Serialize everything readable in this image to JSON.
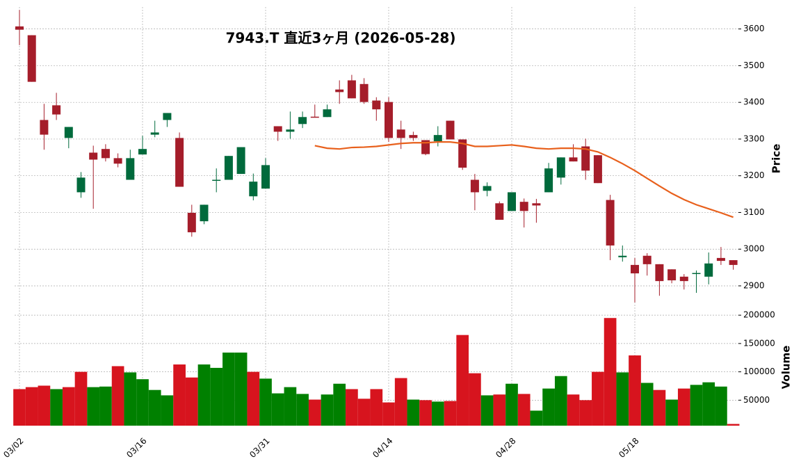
{
  "chart_data": [
    {
      "type": "candlestick",
      "title": "7943.T  直近3ヶ月  (2026-05-28)",
      "ylabel": "Price",
      "open": [
        3607,
        3583,
        3352,
        3392,
        3303,
        3155,
        3263,
        3273,
        3248,
        3189,
        3258,
        3312,
        3352,
        3303,
        3099,
        3076,
        3187,
        3189,
        3205,
        3144,
        3165,
        3335,
        3320,
        3341,
        3361,
        3360,
        3435,
        3460,
        3450,
        3405,
        3401,
        3326,
        3311,
        3297,
        3294,
        3350,
        3299,
        3189,
        3159,
        3125,
        3104,
        3129,
        3125,
        3155,
        3195,
        3250,
        3280,
        3256,
        3134,
        2978,
        2957,
        2982,
        2959,
        2945,
        2925,
        2933,
        2925,
        2976,
        2970
      ],
      "high": [
        3652,
        3583,
        3396,
        3426,
        3333,
        3210,
        3282,
        3286,
        3261,
        3271,
        3309,
        3350,
        3371,
        3318,
        3121,
        3121,
        3220,
        3254,
        3278,
        3206,
        3248,
        3335,
        3375,
        3375,
        3394,
        3394,
        3460,
        3475,
        3466,
        3414,
        3414,
        3350,
        3320,
        3297,
        3335,
        3350,
        3299,
        3205,
        3182,
        3130,
        3155,
        3138,
        3137,
        3235,
        3250,
        3286,
        3301,
        3256,
        3148,
        3010,
        2976,
        2989,
        2959,
        2945,
        2932,
        2942,
        2991,
        3006,
        2970
      ],
      "low": [
        3556,
        3456,
        3271,
        3352,
        3275,
        3140,
        3110,
        3239,
        3223,
        3189,
        3258,
        3305,
        3333,
        3170,
        3034,
        3068,
        3155,
        3189,
        3205,
        3133,
        3165,
        3295,
        3301,
        3330,
        3359,
        3360,
        3396,
        3411,
        3396,
        3350,
        3292,
        3273,
        3295,
        3256,
        3280,
        3299,
        3216,
        3106,
        3144,
        3080,
        3104,
        3059,
        3072,
        3155,
        3176,
        3239,
        3189,
        3180,
        2970,
        2966,
        2855,
        2928,
        2873,
        2907,
        2890,
        2881,
        2904,
        2957,
        2944
      ],
      "close": [
        3598,
        3456,
        3312,
        3367,
        3333,
        3195,
        3244,
        3248,
        3233,
        3248,
        3273,
        3318,
        3371,
        3170,
        3046,
        3121,
        3189,
        3254,
        3278,
        3184,
        3229,
        3320,
        3326,
        3360,
        3359,
        3381,
        3428,
        3411,
        3401,
        3381,
        3303,
        3303,
        3303,
        3259,
        3311,
        3299,
        3222,
        3155,
        3172,
        3080,
        3155,
        3104,
        3119,
        3220,
        3250,
        3239,
        3214,
        3180,
        3010,
        2982,
        2934,
        2959,
        2913,
        2915,
        2913,
        2935,
        2961,
        2968,
        2957
      ],
      "up_color": "#006a3c",
      "down_color": "#a51d2a",
      "overlay": {
        "type": "line",
        "color": "#e8601c",
        "values": [
          null,
          null,
          null,
          null,
          null,
          null,
          null,
          null,
          null,
          null,
          null,
          null,
          null,
          null,
          null,
          null,
          null,
          null,
          null,
          null,
          null,
          null,
          null,
          null,
          3282,
          3275,
          3273,
          3277,
          3278,
          3280,
          3284,
          3288,
          3290,
          3290,
          3292,
          3292,
          3288,
          3280,
          3280,
          3282,
          3284,
          3280,
          3275,
          3273,
          3275,
          3275,
          3273,
          3265,
          3250,
          3233,
          3214,
          3193,
          3172,
          3152,
          3135,
          3121,
          3110,
          3099,
          3087
        ]
      },
      "ylim": [
        2845,
        3660
      ],
      "yticks": [
        2900,
        3000,
        3100,
        3200,
        3300,
        3400,
        3500,
        3600
      ],
      "grid": true
    },
    {
      "type": "bar",
      "ylabel": "Volume",
      "categories": [
        "03/02",
        null,
        null,
        null,
        null,
        null,
        null,
        null,
        null,
        null,
        "03/16",
        null,
        null,
        null,
        null,
        null,
        null,
        null,
        null,
        null,
        "03/31",
        null,
        null,
        null,
        null,
        null,
        null,
        null,
        null,
        null,
        "04/14",
        null,
        null,
        null,
        null,
        null,
        null,
        null,
        null,
        null,
        "04/28",
        null,
        null,
        null,
        null,
        null,
        null,
        null,
        null,
        null,
        "05/18",
        null,
        null,
        null,
        null,
        null,
        null,
        null,
        null
      ],
      "values": [
        69500,
        73000,
        75600,
        69500,
        73000,
        100000,
        73000,
        74000,
        110000,
        99000,
        87000,
        68000,
        58500,
        113000,
        90000,
        113000,
        107000,
        134000,
        134000,
        100000,
        88000,
        62000,
        73000,
        61000,
        51000,
        60000,
        79000,
        69500,
        52500,
        69500,
        46000,
        89000,
        51000,
        50000,
        47500,
        48500,
        165000,
        97500,
        58500,
        60000,
        79000,
        61000,
        31500,
        70500,
        92500,
        60000,
        50000,
        100000,
        195000,
        99000,
        129000,
        80500,
        68000,
        51000,
        70500,
        77000,
        81500,
        74000,
        8000
      ],
      "colors": [
        "#d7141e",
        "#d7141e",
        "#d7141e",
        "#008000",
        "#d7141e",
        "#d7141e",
        "#008000",
        "#008000",
        "#d7141e",
        "#008000",
        "#008000",
        "#008000",
        "#008000",
        "#d7141e",
        "#d7141e",
        "#008000",
        "#008000",
        "#008000",
        "#008000",
        "#d7141e",
        "#008000",
        "#008000",
        "#008000",
        "#008000",
        "#d7141e",
        "#008000",
        "#008000",
        "#d7141e",
        "#d7141e",
        "#d7141e",
        "#d7141e",
        "#d7141e",
        "#008000",
        "#d7141e",
        "#008000",
        "#d7141e",
        "#d7141e",
        "#d7141e",
        "#008000",
        "#d7141e",
        "#008000",
        "#d7141e",
        "#008000",
        "#008000",
        "#008000",
        "#d7141e",
        "#d7141e",
        "#d7141e",
        "#d7141e",
        "#008000",
        "#d7141e",
        "#008000",
        "#d7141e",
        "#008000",
        "#d7141e",
        "#008000",
        "#008000",
        "#008000",
        "#d7141e"
      ],
      "ylim": [
        5000,
        210000
      ],
      "yticks": [
        50000,
        100000,
        150000,
        200000
      ],
      "grid": true
    }
  ]
}
